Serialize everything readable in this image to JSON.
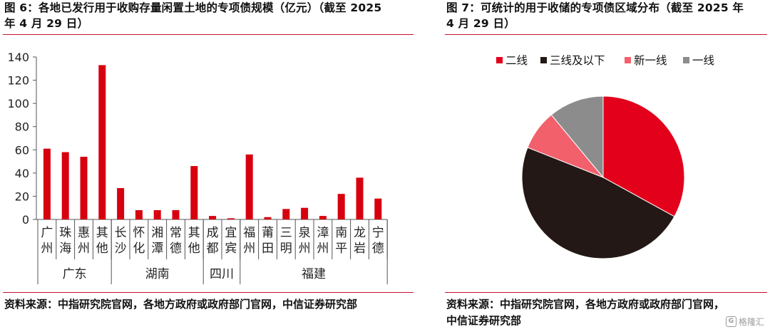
{
  "left": {
    "title_line1": "图 6：各地已发行用于收购存量闲置土地的专项债规模（亿元）（截至 2025",
    "title_line2": "年 4 月 29 日）",
    "source": "资料来源：中指研究院官网，各地方政府或政府部门官网，中信证券研究部"
  },
  "right": {
    "title_line1": "图 7：可统计的用于收储的专项债区域分布（截至 2025 年",
    "title_line2": "4 月 29 日）",
    "source_line1": "资料来源：中指研究院官网，各地方政府或政府部门官网，",
    "source_line2": "中信证券研究部"
  },
  "watermark": {
    "text": "格隆汇",
    "box": "G"
  },
  "colors": {
    "accent": "#c8102e",
    "bar": "#d7000f"
  },
  "chart_data": [
    {
      "type": "bar",
      "ylim": [
        0,
        140
      ],
      "yticks": [
        0,
        20,
        40,
        60,
        80,
        100,
        120,
        140
      ],
      "categories": [
        "广州",
        "珠海",
        "惠州",
        "其他",
        "长沙",
        "怀化",
        "湘潭",
        "常德",
        "其他",
        "成都",
        "宜宾",
        "福州",
        "莆田",
        "三明",
        "泉州",
        "漳州",
        "南平",
        "龙岩",
        "宁德"
      ],
      "values": [
        61,
        58,
        54,
        133,
        27,
        8,
        8,
        8,
        46,
        3,
        1,
        56,
        2,
        9,
        10,
        3,
        22,
        36,
        18
      ],
      "groups": [
        {
          "name": "广东",
          "count": 4
        },
        {
          "name": "湖南",
          "count": 5
        },
        {
          "name": "四川",
          "count": 2
        },
        {
          "name": "福建",
          "count": 8
        }
      ],
      "grid": false
    },
    {
      "type": "pie",
      "labels": [
        "二线",
        "三线及以下",
        "新一线",
        "一线"
      ],
      "values": [
        33,
        48,
        8,
        11
      ],
      "colors": [
        "#e3001b",
        "#231815",
        "#f2606c",
        "#8c8c8c"
      ],
      "legend": "top"
    }
  ]
}
